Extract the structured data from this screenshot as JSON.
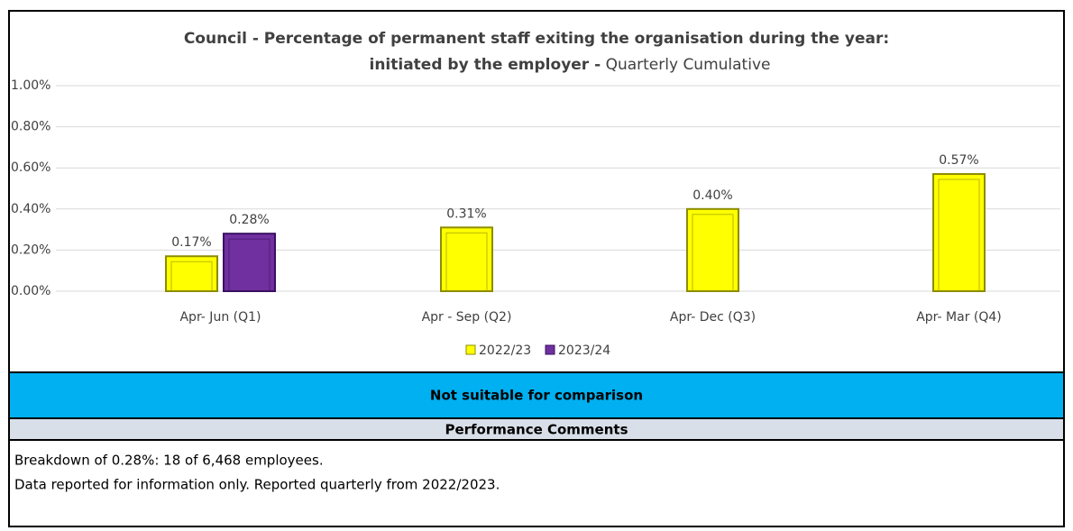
{
  "chart_data": {
    "type": "bar",
    "title": [
      "Council - Percentage of permanent staff exiting the organisation during the year:",
      "initiated by the employer -"
    ],
    "subtitle": "Quarterly Cumulative",
    "categories": [
      "Apr- Jun  (Q1)",
      "Apr - Sep  (Q2)",
      "Apr- Dec  (Q3)",
      "Apr- Mar  (Q4)"
    ],
    "series": [
      {
        "name": "2022/23",
        "color": "#ffff00",
        "values": [
          0.17,
          0.31,
          0.4,
          0.57
        ],
        "value_labels": [
          "0.17%",
          "0.31%",
          "0.40%",
          "0.57%"
        ]
      },
      {
        "name": "2023/24",
        "color": "#7030a0",
        "values": [
          0.28,
          null,
          null,
          null
        ],
        "value_labels": [
          "0.28%",
          null,
          null,
          null
        ]
      }
    ],
    "ylim": [
      0,
      1
    ],
    "yticks": [
      {
        "value": 0,
        "label": "0.00%"
      },
      {
        "value": 0.2,
        "label": "0.20%"
      },
      {
        "value": 0.4,
        "label": "0.40%"
      },
      {
        "value": 0.6,
        "label": "0.60%"
      },
      {
        "value": 0.8,
        "label": "0.80%"
      },
      {
        "value": 1,
        "label": "1.00%"
      }
    ],
    "grid": true,
    "legend": "bottom"
  },
  "banner": "Not suitable for comparison",
  "comments": {
    "heading": "Performance Comments",
    "lines": [
      "Breakdown of 0.28%:  18 of 6,468 employees.",
      "Data reported for information only. Reported quarterly from 2022/2023."
    ]
  }
}
